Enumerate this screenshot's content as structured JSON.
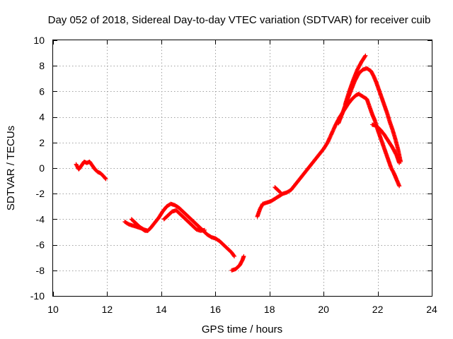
{
  "chart_data": {
    "type": "scatter",
    "title": "Day 052 of 2018, Sidereal Day-to-day VTEC variation (SDTVAR) for receiver cuib",
    "xlabel": "GPS time / hours",
    "ylabel": "SDTVAR / TECUs",
    "xlim": [
      10,
      24
    ],
    "ylim": [
      -10,
      10
    ],
    "xticks": [
      10,
      12,
      14,
      16,
      18,
      20,
      22,
      24
    ],
    "yticks": [
      -10,
      -8,
      -6,
      -4,
      -2,
      0,
      2,
      4,
      6,
      8,
      10
    ],
    "grid": true,
    "marker": "+",
    "series_color": "#ff0000",
    "segments": [
      {
        "name": "seg-1",
        "points": [
          [
            10.85,
            0.3
          ],
          [
            10.95,
            -0.1
          ],
          [
            11.05,
            0.2
          ],
          [
            11.15,
            0.5
          ],
          [
            11.25,
            0.4
          ],
          [
            11.35,
            0.5
          ],
          [
            11.45,
            0.2
          ],
          [
            11.55,
            -0.1
          ],
          [
            11.65,
            -0.3
          ],
          [
            11.75,
            -0.4
          ],
          [
            11.85,
            -0.6
          ],
          [
            11.95,
            -0.85
          ]
        ]
      },
      {
        "name": "seg-2",
        "points": [
          [
            12.65,
            -4.2
          ],
          [
            12.8,
            -4.4
          ],
          [
            12.95,
            -4.5
          ],
          [
            13.1,
            -4.6
          ],
          [
            13.25,
            -4.7
          ],
          [
            13.4,
            -4.9
          ],
          [
            13.5,
            -4.9
          ],
          [
            13.6,
            -4.7
          ],
          [
            13.75,
            -4.3
          ],
          [
            13.9,
            -3.9
          ],
          [
            14.05,
            -3.4
          ],
          [
            14.2,
            -3.0
          ],
          [
            14.35,
            -2.8
          ],
          [
            14.5,
            -2.9
          ],
          [
            14.65,
            -3.1
          ],
          [
            14.8,
            -3.4
          ],
          [
            14.95,
            -3.7
          ],
          [
            15.1,
            -4.0
          ],
          [
            15.25,
            -4.3
          ],
          [
            15.4,
            -4.6
          ],
          [
            15.55,
            -4.9
          ],
          [
            15.7,
            -5.2
          ],
          [
            15.85,
            -5.4
          ],
          [
            16.0,
            -5.5
          ],
          [
            16.15,
            -5.7
          ],
          [
            16.3,
            -6.0
          ],
          [
            16.45,
            -6.3
          ],
          [
            16.6,
            -6.6
          ],
          [
            16.7,
            -6.9
          ]
        ]
      },
      {
        "name": "seg-3",
        "points": [
          [
            12.9,
            -4.0
          ],
          [
            13.05,
            -4.3
          ],
          [
            13.2,
            -4.6
          ],
          [
            13.35,
            -4.8
          ],
          [
            13.5,
            -4.9
          ]
        ]
      },
      {
        "name": "seg-4",
        "points": [
          [
            14.1,
            -4.0
          ],
          [
            14.25,
            -3.7
          ],
          [
            14.4,
            -3.4
          ],
          [
            14.55,
            -3.3
          ],
          [
            14.7,
            -3.6
          ],
          [
            14.85,
            -3.9
          ],
          [
            15.0,
            -4.2
          ],
          [
            15.15,
            -4.5
          ],
          [
            15.3,
            -4.8
          ],
          [
            15.45,
            -4.9
          ],
          [
            15.6,
            -4.85
          ]
        ]
      },
      {
        "name": "seg-5",
        "points": [
          [
            16.6,
            -8.0
          ],
          [
            16.75,
            -7.9
          ],
          [
            16.9,
            -7.6
          ],
          [
            17.0,
            -7.2
          ],
          [
            17.05,
            -6.9
          ]
        ]
      },
      {
        "name": "seg-6",
        "points": [
          [
            17.55,
            -3.8
          ],
          [
            17.65,
            -3.2
          ],
          [
            17.75,
            -2.8
          ],
          [
            17.9,
            -2.7
          ],
          [
            18.05,
            -2.6
          ],
          [
            18.2,
            -2.4
          ],
          [
            18.35,
            -2.2
          ],
          [
            18.5,
            -2.0
          ],
          [
            18.65,
            -1.9
          ],
          [
            18.8,
            -1.7
          ],
          [
            18.95,
            -1.3
          ],
          [
            19.1,
            -0.9
          ],
          [
            19.25,
            -0.5
          ],
          [
            19.4,
            -0.1
          ],
          [
            19.55,
            0.3
          ],
          [
            19.7,
            0.7
          ],
          [
            19.85,
            1.1
          ],
          [
            20.0,
            1.5
          ],
          [
            20.15,
            2.0
          ],
          [
            20.3,
            2.7
          ],
          [
            20.45,
            3.4
          ],
          [
            20.6,
            4.0
          ],
          [
            20.75,
            4.5
          ],
          [
            20.9,
            5.0
          ],
          [
            21.05,
            5.4
          ],
          [
            21.2,
            5.7
          ],
          [
            21.3,
            5.8
          ],
          [
            21.45,
            5.6
          ],
          [
            21.6,
            5.4
          ],
          [
            21.7,
            4.8
          ],
          [
            21.8,
            4.2
          ],
          [
            21.9,
            3.7
          ],
          [
            22.0,
            3.0
          ],
          [
            22.1,
            2.4
          ],
          [
            22.2,
            1.8
          ],
          [
            22.3,
            1.2
          ],
          [
            22.4,
            0.6
          ],
          [
            22.5,
            0.0
          ],
          [
            22.6,
            -0.4
          ],
          [
            22.7,
            -0.9
          ],
          [
            22.8,
            -1.4
          ]
        ]
      },
      {
        "name": "seg-7",
        "points": [
          [
            18.2,
            -1.5
          ],
          [
            18.3,
            -1.7
          ],
          [
            18.4,
            -1.9
          ]
        ]
      },
      {
        "name": "seg-8",
        "points": [
          [
            20.55,
            3.5
          ],
          [
            20.7,
            4.3
          ],
          [
            20.85,
            5.2
          ],
          [
            21.0,
            6.0
          ],
          [
            21.15,
            6.8
          ],
          [
            21.3,
            7.4
          ],
          [
            21.45,
            7.7
          ],
          [
            21.6,
            7.8
          ],
          [
            21.75,
            7.6
          ],
          [
            21.85,
            7.2
          ],
          [
            21.95,
            6.7
          ],
          [
            22.05,
            6.1
          ],
          [
            22.15,
            5.5
          ],
          [
            22.25,
            4.9
          ],
          [
            22.35,
            4.3
          ],
          [
            22.45,
            3.6
          ],
          [
            22.55,
            3.0
          ],
          [
            22.65,
            2.3
          ],
          [
            22.75,
            1.5
          ],
          [
            22.85,
            0.5
          ]
        ]
      },
      {
        "name": "seg-9",
        "points": [
          [
            20.8,
            5.0
          ],
          [
            20.95,
            6.0
          ],
          [
            21.1,
            6.9
          ],
          [
            21.25,
            7.7
          ],
          [
            21.4,
            8.3
          ],
          [
            21.55,
            8.8
          ]
        ]
      },
      {
        "name": "seg-10",
        "points": [
          [
            21.8,
            3.4
          ],
          [
            21.95,
            3.3
          ],
          [
            22.1,
            3.0
          ],
          [
            22.25,
            2.6
          ],
          [
            22.4,
            2.1
          ],
          [
            22.55,
            1.6
          ],
          [
            22.7,
            1.0
          ],
          [
            22.8,
            0.4
          ]
        ]
      }
    ]
  }
}
